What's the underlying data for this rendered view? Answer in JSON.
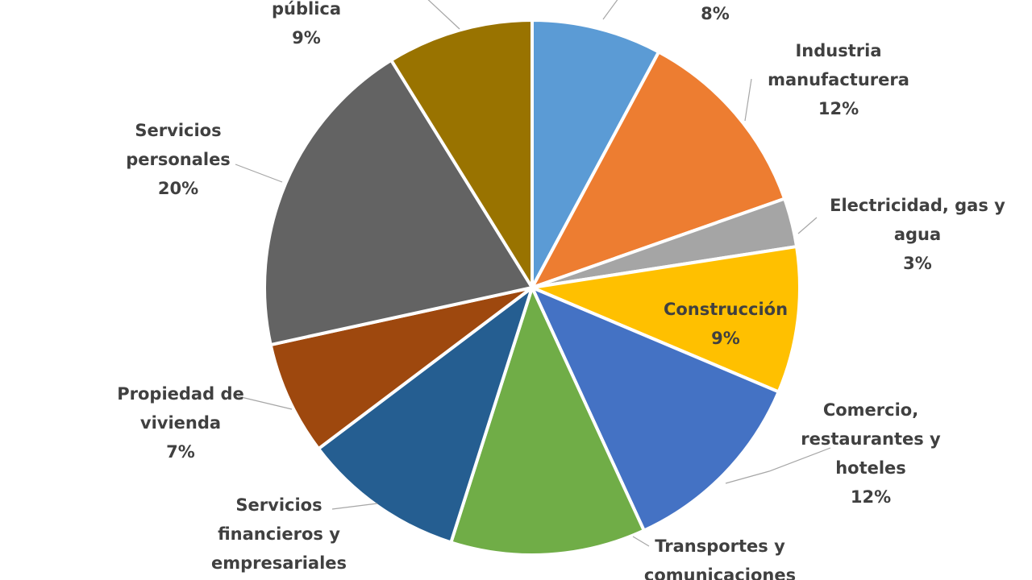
{
  "chart_data": {
    "type": "pie",
    "title": "",
    "colors": [
      "#5b9bd5",
      "#ed7d31",
      "#a5a5a5",
      "#ffc000",
      "#4472c4",
      "#70ad47",
      "#255e91",
      "#9e480e",
      "#636363",
      "#997300"
    ],
    "slices": [
      {
        "lines": [
          "8%"
        ],
        "value": 8
      },
      {
        "lines": [
          "Industria",
          "manufacturera",
          "12%"
        ],
        "value": 12
      },
      {
        "lines": [
          "Electricidad, gas y",
          "agua",
          "3%"
        ],
        "value": 3
      },
      {
        "lines": [
          "Construcción",
          "9%"
        ],
        "value": 9
      },
      {
        "lines": [
          "Comercio,",
          "restaurantes y",
          "hoteles",
          "12%"
        ],
        "value": 12
      },
      {
        "lines": [
          "Transportes y",
          "comunicaciones"
        ],
        "value": 12
      },
      {
        "lines": [
          "Servicios",
          "financieros y",
          "empresariales"
        ],
        "value": 10
      },
      {
        "lines": [
          "Propiedad de",
          "vivienda",
          "7%"
        ],
        "value": 7
      },
      {
        "lines": [
          "Servicios",
          "personales",
          "20%"
        ],
        "value": 20
      },
      {
        "lines": [
          "pública",
          "9%"
        ],
        "value": 9
      }
    ]
  }
}
